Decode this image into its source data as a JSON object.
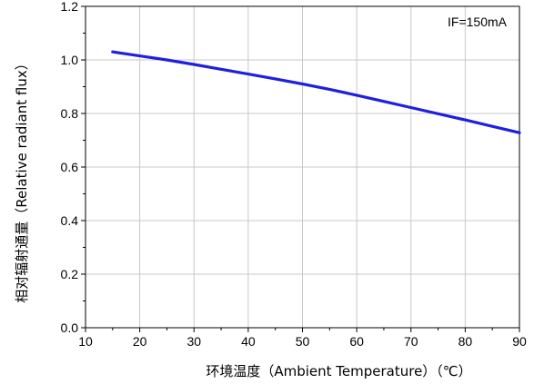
{
  "chart_data": {
    "type": "line",
    "title": "",
    "xlabel": "环境温度（Ambient Temperature）（℃）",
    "ylabel": "相对辐射通量（Relative radiant flux）",
    "annotation": "IF=150mA",
    "xlim": [
      10,
      90
    ],
    "ylim": [
      0.0,
      1.2
    ],
    "x_ticks": [
      "10",
      "20",
      "30",
      "40",
      "50",
      "60",
      "70",
      "80",
      "90"
    ],
    "y_ticks": [
      "0.0",
      "0.2",
      "0.4",
      "0.6",
      "0.8",
      "1.0",
      "1.2"
    ],
    "grid": true,
    "series_color": "#1f1fe0",
    "series": [
      {
        "x": [
          15,
          20,
          25,
          30,
          35,
          40,
          45,
          50,
          55,
          60,
          65,
          70,
          75,
          80,
          85,
          90
        ],
        "y": [
          1.03,
          1.015,
          1.0,
          0.983,
          0.965,
          0.947,
          0.929,
          0.91,
          0.89,
          0.868,
          0.845,
          0.822,
          0.799,
          0.776,
          0.752,
          0.728
        ]
      }
    ]
  }
}
